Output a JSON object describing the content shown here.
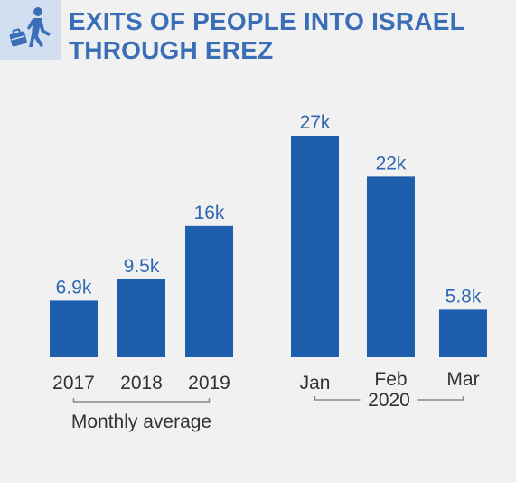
{
  "header": {
    "title_line1": "EXITS OF PEOPLE INTO ISRAEL",
    "title_line2": "THROUGH EREZ",
    "icon": "walking-person-with-bag-icon"
  },
  "colors": {
    "bar": "#1e5fad",
    "title": "#3a6fb8",
    "icon_bg": "#d2dff0",
    "background": "#f1f1f1"
  },
  "chart_data": {
    "type": "bar",
    "title": "EXITS OF PEOPLE INTO ISRAEL THROUGH EREZ",
    "categories": [
      "2017",
      "2018",
      "2019",
      "Jan",
      "Feb",
      "Mar"
    ],
    "values": [
      6.9,
      9.5,
      16,
      27,
      22,
      5.8
    ],
    "data_labels": [
      "6.9k",
      "9.5k",
      "16k",
      "27k",
      "22k",
      "5.8k"
    ],
    "unit": "thousands",
    "groups": [
      {
        "label": "Monthly average",
        "categories": [
          "2017",
          "2018",
          "2019"
        ]
      },
      {
        "label": "2020",
        "categories": [
          "Jan",
          "Feb",
          "Mar"
        ]
      }
    ],
    "xlabel": "",
    "ylabel": "",
    "ylim": [
      0,
      27
    ],
    "grid": false,
    "legend": "none"
  }
}
